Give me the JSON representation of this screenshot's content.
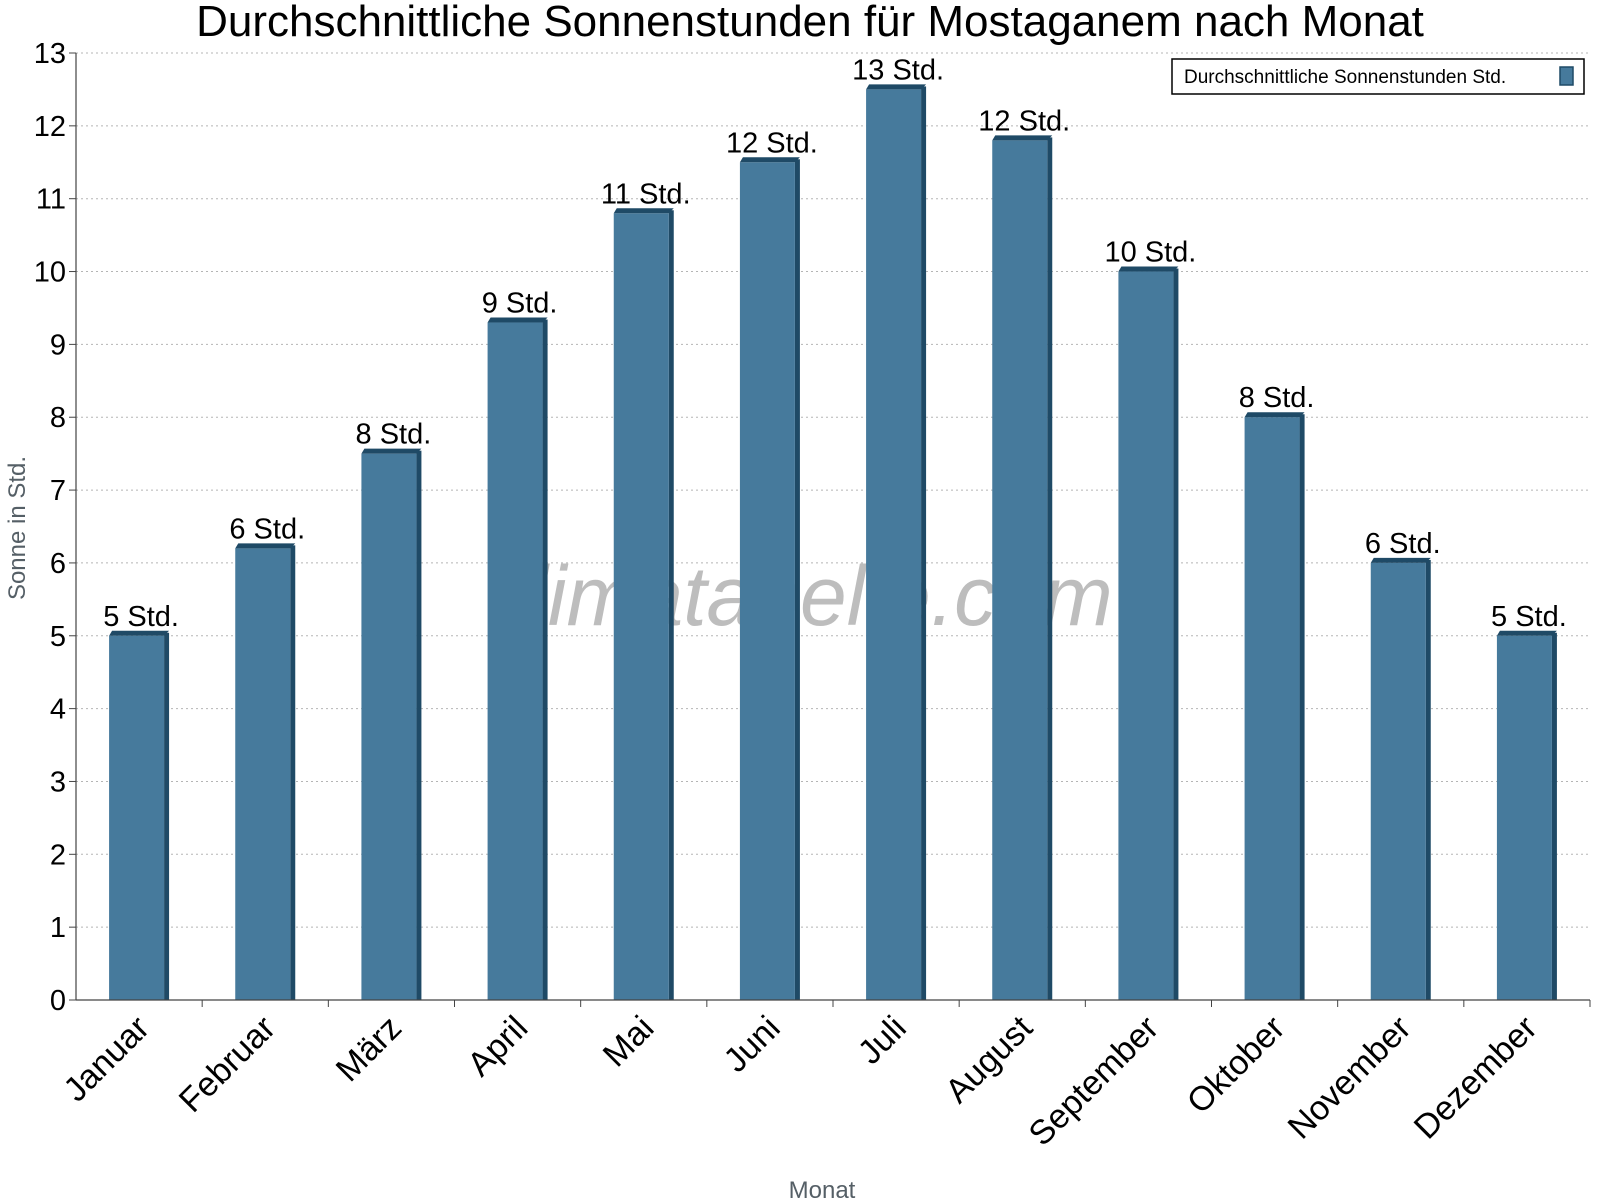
{
  "chart_data": {
    "type": "bar",
    "title": "Durchschnittliche Sonnenstunden für Mostaganem nach Monat",
    "xlabel": "Monat",
    "ylabel": "Sonne in Std.",
    "ylim": [
      0,
      13
    ],
    "yticks": [
      "0",
      "1",
      "2",
      "3",
      "4",
      "5",
      "6",
      "7",
      "8",
      "9",
      "10",
      "11",
      "12",
      "13"
    ],
    "grid": true,
    "legend_position": "top-right",
    "categories": [
      "Januar",
      "Februar",
      "März",
      "April",
      "Mai",
      "Juni",
      "Juli",
      "August",
      "September",
      "Oktober",
      "November",
      "Dezember"
    ],
    "series": [
      {
        "name": "Durchschnittliche Sonnenstunden Std.",
        "color": "#467a9c",
        "values": [
          5.0,
          6.2,
          7.5,
          9.3,
          10.8,
          11.5,
          12.5,
          11.8,
          10.0,
          8.0,
          6.0,
          5.0
        ],
        "labels": [
          "5 Std.",
          "6 Std.",
          "8 Std.",
          "9 Std.",
          "11 Std.",
          "12 Std.",
          "13 Std.",
          "12 Std.",
          "10 Std.",
          "8 Std.",
          "6 Std.",
          "5 Std."
        ]
      }
    ]
  },
  "watermark": "klimatabelle.com"
}
